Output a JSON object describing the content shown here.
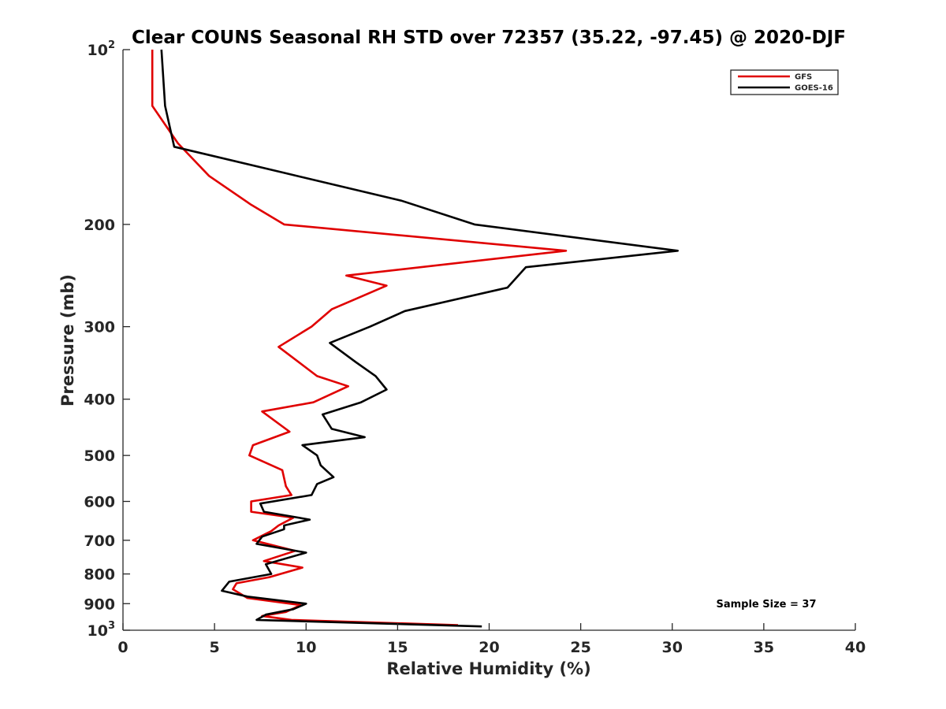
{
  "chart_data": {
    "type": "line",
    "title": "Clear COUNS Seasonal RH STD over 72357 (35.22, -97.45) @ 2020-DJF",
    "xlabel": "Relative Humidity (%)",
    "ylabel": "Pressure (mb)",
    "xlim": [
      0,
      40
    ],
    "ylim": [
      100,
      1000
    ],
    "yscale": "log",
    "y_reversed": true,
    "xticks": [
      0,
      5,
      10,
      15,
      20,
      25,
      30,
      35,
      40
    ],
    "xtick_labels": [
      "0",
      "5",
      "10",
      "15",
      "20",
      "25",
      "30",
      "35",
      "40"
    ],
    "yticks": [
      100,
      200,
      300,
      400,
      500,
      600,
      700,
      800,
      900,
      1000
    ],
    "ytick_labels": [
      {
        "base": "10",
        "exp": "2"
      },
      {
        "text": "200"
      },
      {
        "text": "300"
      },
      {
        "text": "400"
      },
      {
        "text": "500"
      },
      {
        "text": "600"
      },
      {
        "text": "700"
      },
      {
        "text": "800"
      },
      {
        "text": "900"
      },
      {
        "base": "10",
        "exp": "3"
      }
    ],
    "grid": false,
    "legend_position": "top-right",
    "annotation": "Sample Size = 37",
    "series": [
      {
        "name": "GFS",
        "color": "#e00000",
        "points": [
          [
            1.6,
            100
          ],
          [
            1.6,
            125
          ],
          [
            3.0,
            145
          ],
          [
            4.7,
            165
          ],
          [
            7.0,
            185
          ],
          [
            8.8,
            200
          ],
          [
            24.2,
            222
          ],
          [
            12.2,
            245
          ],
          [
            14.4,
            255
          ],
          [
            11.4,
            280
          ],
          [
            10.3,
            300
          ],
          [
            8.5,
            325
          ],
          [
            10.6,
            365
          ],
          [
            12.3,
            380
          ],
          [
            10.4,
            405
          ],
          [
            7.6,
            420
          ],
          [
            9.1,
            455
          ],
          [
            7.1,
            480
          ],
          [
            6.9,
            500
          ],
          [
            8.7,
            530
          ],
          [
            8.9,
            565
          ],
          [
            9.2,
            585
          ],
          [
            7.0,
            600
          ],
          [
            7.0,
            625
          ],
          [
            9.3,
            640
          ],
          [
            8.5,
            660
          ],
          [
            8.1,
            675
          ],
          [
            7.1,
            700
          ],
          [
            9.4,
            730
          ],
          [
            7.7,
            760
          ],
          [
            9.8,
            780
          ],
          [
            8.0,
            810
          ],
          [
            6.2,
            830
          ],
          [
            6.0,
            850
          ],
          [
            6.8,
            880
          ],
          [
            9.7,
            905
          ],
          [
            8.9,
            930
          ],
          [
            7.6,
            945
          ],
          [
            9.2,
            960
          ],
          [
            18.3,
            980
          ]
        ]
      },
      {
        "name": "GOES-16",
        "color": "#000000",
        "points": [
          [
            2.1,
            100
          ],
          [
            2.3,
            125
          ],
          [
            2.8,
            147
          ],
          [
            8.8,
            163
          ],
          [
            15.2,
            182
          ],
          [
            19.2,
            200
          ],
          [
            30.3,
            222
          ],
          [
            22.0,
            237
          ],
          [
            21.0,
            257
          ],
          [
            15.4,
            282
          ],
          [
            13.5,
            300
          ],
          [
            11.3,
            320
          ],
          [
            12.7,
            345
          ],
          [
            13.8,
            365
          ],
          [
            14.4,
            385
          ],
          [
            13.0,
            405
          ],
          [
            10.9,
            425
          ],
          [
            11.4,
            450
          ],
          [
            13.2,
            465
          ],
          [
            9.8,
            480
          ],
          [
            10.6,
            500
          ],
          [
            10.8,
            520
          ],
          [
            11.5,
            545
          ],
          [
            10.6,
            560
          ],
          [
            10.3,
            585
          ],
          [
            7.5,
            605
          ],
          [
            7.7,
            625
          ],
          [
            10.2,
            645
          ],
          [
            8.8,
            660
          ],
          [
            8.8,
            670
          ],
          [
            7.6,
            690
          ],
          [
            7.3,
            710
          ],
          [
            10.0,
            735
          ],
          [
            7.8,
            770
          ],
          [
            8.1,
            800
          ],
          [
            5.8,
            825
          ],
          [
            5.4,
            855
          ],
          [
            6.8,
            875
          ],
          [
            10.0,
            900
          ],
          [
            9.3,
            920
          ],
          [
            7.8,
            940
          ],
          [
            7.3,
            960
          ],
          [
            19.6,
            985
          ]
        ]
      }
    ]
  }
}
